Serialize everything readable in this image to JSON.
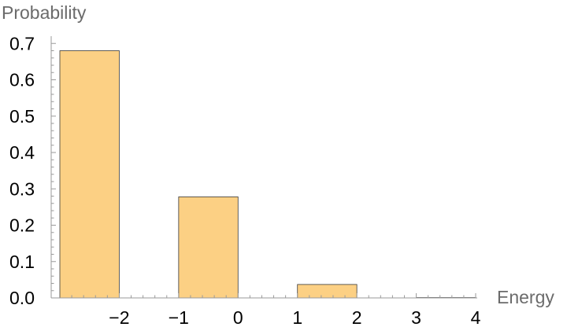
{
  "chart_data": {
    "type": "bar",
    "title": "",
    "xlabel": "Energy",
    "ylabel": "Probability",
    "xlim": [
      -3,
      4
    ],
    "ylim": [
      0,
      0.72
    ],
    "x_ticks": [
      -2,
      -1,
      0,
      1,
      2,
      3,
      4
    ],
    "x_tick_labels": [
      "−2",
      "−1",
      "0",
      "1",
      "2",
      "3",
      "4"
    ],
    "y_ticks": [
      0,
      0.1,
      0.2,
      0.3,
      0.4,
      0.5,
      0.6,
      0.7
    ],
    "y_tick_labels": [
      "0.0",
      "0.1",
      "0.2",
      "0.3",
      "0.4",
      "0.5",
      "0.6",
      "0.7"
    ],
    "bins": [
      {
        "x0": -3,
        "x1": -2,
        "value": 0.68
      },
      {
        "x0": -1,
        "x1": 0,
        "value": 0.278
      },
      {
        "x0": 1,
        "x1": 2,
        "value": 0.037
      },
      {
        "x0": 3,
        "x1": 4,
        "value": 0.001
      }
    ],
    "bar_color": "#fcd084",
    "bar_edge_color": "#3a3a3a",
    "grid": false,
    "legend": "none"
  }
}
